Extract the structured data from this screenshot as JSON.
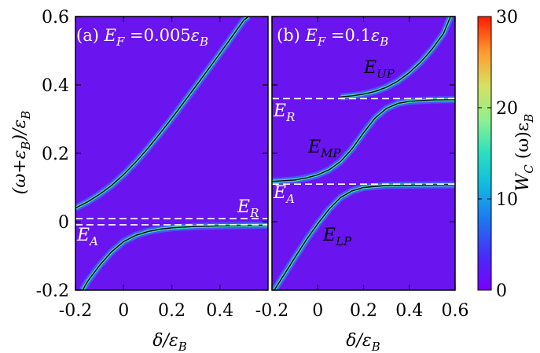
{
  "chart_data": [
    {
      "type": "heatmap",
      "panel": "a",
      "title": "(a) E_F = 0.005ε_B",
      "title_parts": {
        "prefix": "(a) ",
        "sym": "E",
        "sub": "F",
        "eq": " =0.005",
        "eps": "ε",
        "eps_sub": "B"
      },
      "xlabel": "δ/ε_B",
      "ylabel": "(ω+ε_B)/ε_B",
      "xlim": [
        -0.2,
        0.6
      ],
      "ylim": [
        -0.2,
        0.6
      ],
      "xticks": [
        "-0.2",
        "0",
        "0.2",
        "0.4"
      ],
      "xtick_values": [
        -0.2,
        0,
        0.2,
        0.4
      ],
      "yticks": [
        "-0.2",
        "0",
        "0.2",
        "0.4",
        "0.6"
      ],
      "ytick_values": [
        -0.2,
        0,
        0.2,
        0.4,
        0.6
      ],
      "reference_lines": [
        {
          "label": "E_R",
          "y": 0.009,
          "style": "dashed"
        },
        {
          "label": "E_A",
          "y": -0.009,
          "style": "dashed"
        }
      ],
      "series": [
        {
          "points": [
            [
              -0.2,
              0.04
            ],
            [
              -0.15,
              0.058
            ],
            [
              -0.1,
              0.08
            ],
            [
              -0.05,
              0.106
            ],
            [
              0,
              0.138
            ],
            [
              0.05,
              0.174
            ],
            [
              0.1,
              0.214
            ],
            [
              0.15,
              0.257
            ],
            [
              0.2,
              0.302
            ],
            [
              0.25,
              0.349
            ],
            [
              0.3,
              0.396
            ],
            [
              0.35,
              0.444
            ],
            [
              0.4,
              0.492
            ],
            [
              0.45,
              0.541
            ],
            [
              0.5,
              0.59
            ],
            [
              0.52,
              0.6
            ]
          ]
        },
        {
          "points": [
            [
              -0.17,
              -0.2
            ],
            [
              -0.15,
              -0.175
            ],
            [
              -0.1,
              -0.128
            ],
            [
              -0.05,
              -0.088
            ],
            [
              0,
              -0.058
            ],
            [
              0.05,
              -0.04
            ],
            [
              0.1,
              -0.029
            ],
            [
              0.15,
              -0.022
            ],
            [
              0.2,
              -0.018
            ],
            [
              0.3,
              -0.014
            ],
            [
              0.4,
              -0.012
            ],
            [
              0.5,
              -0.011
            ],
            [
              0.6,
              -0.01
            ]
          ]
        }
      ]
    },
    {
      "type": "heatmap",
      "panel": "b",
      "title": "(b) E_F = 0.1ε_B",
      "title_parts": {
        "prefix": "(b) ",
        "sym": "E",
        "sub": "F",
        "eq": " =0.1",
        "eps": "ε",
        "eps_sub": "B"
      },
      "xlabel": "δ/ε_B",
      "xlim": [
        -0.2,
        0.6
      ],
      "ylim": [
        -0.2,
        0.6
      ],
      "xticks": [
        "-0.2",
        "0",
        "0.2",
        "0.4",
        "0.6"
      ],
      "xtick_values": [
        -0.2,
        0,
        0.2,
        0.4,
        0.6
      ],
      "reference_lines": [
        {
          "label": "E_R",
          "y": 0.36,
          "style": "dashed"
        },
        {
          "label": "E_A",
          "y": 0.11,
          "style": "dashed"
        }
      ],
      "series": [
        {
          "name": "E_UP",
          "points": [
            [
              0.1,
              0.365
            ],
            [
              0.15,
              0.368
            ],
            [
              0.2,
              0.373
            ],
            [
              0.25,
              0.381
            ],
            [
              0.3,
              0.393
            ],
            [
              0.35,
              0.411
            ],
            [
              0.4,
              0.436
            ],
            [
              0.45,
              0.467
            ],
            [
              0.5,
              0.505
            ],
            [
              0.55,
              0.551
            ],
            [
              0.58,
              0.6
            ]
          ]
        },
        {
          "name": "E_MP",
          "points": [
            [
              -0.2,
              0.118
            ],
            [
              -0.1,
              0.122
            ],
            [
              -0.05,
              0.128
            ],
            [
              0,
              0.137
            ],
            [
              0.05,
              0.152
            ],
            [
              0.1,
              0.176
            ],
            [
              0.15,
              0.213
            ],
            [
              0.2,
              0.26
            ],
            [
              0.25,
              0.303
            ],
            [
              0.3,
              0.331
            ],
            [
              0.35,
              0.346
            ],
            [
              0.4,
              0.352
            ],
            [
              0.5,
              0.356
            ],
            [
              0.6,
              0.357
            ]
          ]
        },
        {
          "name": "E_LP",
          "points": [
            [
              -0.19,
              -0.2
            ],
            [
              -0.15,
              -0.158
            ],
            [
              -0.1,
              -0.105
            ],
            [
              -0.05,
              -0.053
            ],
            [
              0,
              -0.006
            ],
            [
              0.05,
              0.037
            ],
            [
              0.1,
              0.071
            ],
            [
              0.15,
              0.09
            ],
            [
              0.2,
              0.1
            ],
            [
              0.3,
              0.106
            ],
            [
              0.4,
              0.107
            ],
            [
              0.6,
              0.108
            ]
          ]
        }
      ]
    }
  ],
  "annotations": {
    "a_ER": {
      "sym": "E",
      "sub": "R"
    },
    "a_EA": {
      "sym": "E",
      "sub": "A"
    },
    "b_EUP": {
      "sym": "E",
      "sub": "UP"
    },
    "b_ER": {
      "sym": "E",
      "sub": "R"
    },
    "b_EMP": {
      "sym": "E",
      "sub": "MP"
    },
    "b_EA": {
      "sym": "E",
      "sub": "A"
    },
    "b_ELP": {
      "sym": "E",
      "sub": "LP"
    }
  },
  "axis_labels": {
    "y_main": "(ω+ε",
    "y_sub": "B",
    "y_tail": ")/ε",
    "y_sub2": "B",
    "x_main": "δ/ε",
    "x_sub": "B"
  },
  "colorbar": {
    "label_main": "W",
    "label_sub": "C",
    "label_tail": " (ω)ε",
    "label_sub2": "B",
    "range": [
      0,
      30
    ],
    "ticks": [
      "0",
      "10",
      "20",
      "30"
    ],
    "tick_values": [
      0,
      10,
      20,
      30
    ],
    "colormap": "rainbow"
  },
  "colors": {
    "background": "#6a14f0",
    "dash": "#ffffff",
    "curve": "#000000"
  }
}
